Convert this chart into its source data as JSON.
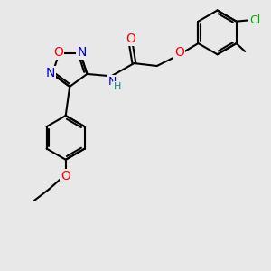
{
  "bg_color": "#e8e8e8",
  "bond_color": "#000000",
  "bond_width": 1.5,
  "font_size": 9,
  "colors": {
    "N": "#0000cc",
    "O": "#ff0000",
    "Cl": "#00aa00",
    "C": "#000000",
    "H": "#008899"
  }
}
